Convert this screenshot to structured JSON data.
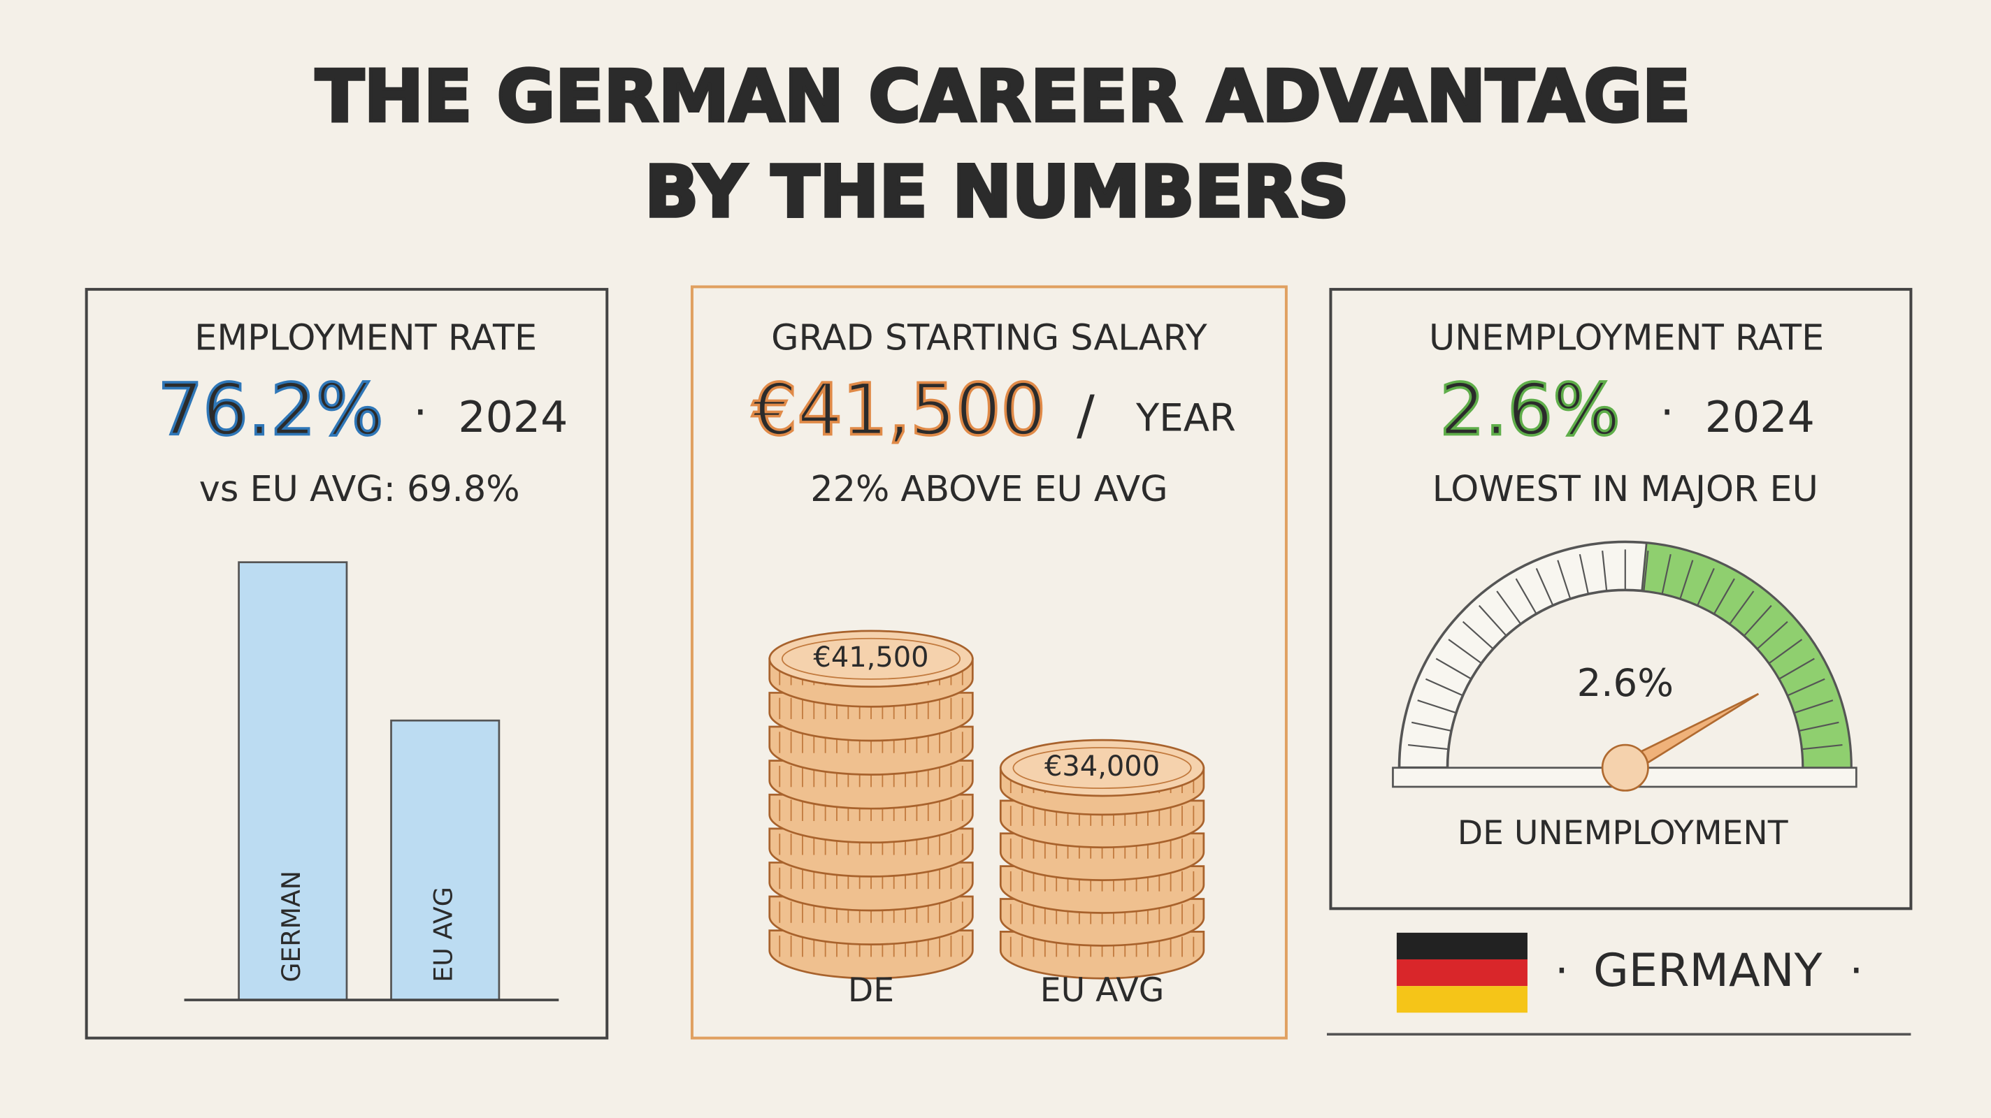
{
  "title": {
    "line1": "THE GERMAN CAREER ADVANTAGE",
    "line2": "BY THE NUMBERS"
  },
  "panels": [
    {
      "heading": "EMPLOYMENT RATE",
      "figure": "76.2%",
      "separator": "·",
      "year": "2024",
      "note": "vs EU AVG: 69.8%"
    },
    {
      "heading": "GRAD STARTING SALARY",
      "figure": "€41,500",
      "separator": "/",
      "unit": "YEAR",
      "note": "22% ABOVE EU AVG"
    },
    {
      "heading": "UNEMPLOYMENT RATE",
      "figure": "2.6%",
      "separator": "·",
      "year": "2024",
      "note": "LOWEST IN MAJOR EU"
    }
  ],
  "chart_data": [
    {
      "type": "bar",
      "categories": [
        "GERMAN",
        "EU AVG"
      ],
      "values": [
        76.2,
        69.8
      ],
      "color": "#bcdcf2",
      "ylim": [
        58.5,
        80
      ]
    },
    {
      "type": "coins",
      "categories": [
        "DE",
        "EU AVG"
      ],
      "values": [
        41500,
        34000
      ],
      "value_labels": [
        "€41,500",
        "€34,000"
      ],
      "color": "#efc08f",
      "ylim": [
        20500,
        45000
      ]
    },
    {
      "type": "gauge",
      "title": "DE UNEMPLOYMENT",
      "values": [
        2.6
      ],
      "value_labels": [
        "2.6%"
      ],
      "ylim": [
        0,
        3.1
      ],
      "color": "#8fcf6f"
    }
  ],
  "footer": {
    "country": "GERMANY",
    "separator": "·"
  }
}
